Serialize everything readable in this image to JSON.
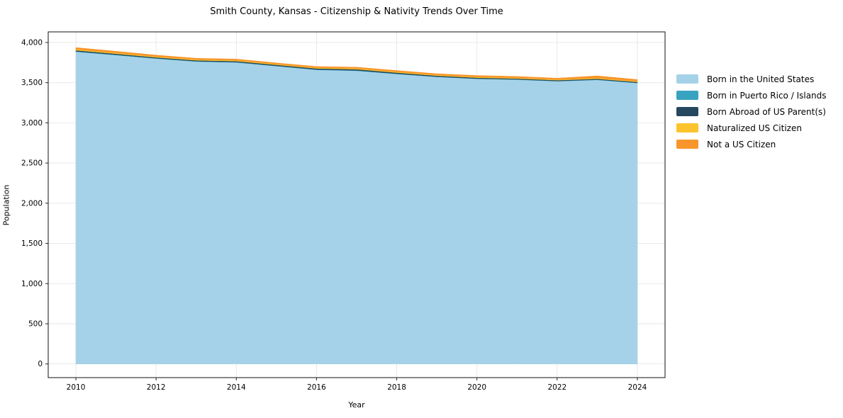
{
  "chart_data": {
    "type": "area",
    "stacked": true,
    "title": "Smith County, Kansas - Citizenship & Nativity Trends Over Time",
    "xlabel": "Year",
    "ylabel": "Population",
    "x": [
      2010,
      2011,
      2012,
      2013,
      2014,
      2015,
      2016,
      2017,
      2018,
      2019,
      2020,
      2021,
      2022,
      2023,
      2024
    ],
    "series": [
      {
        "name": "Born in the United States",
        "color": "#a5d2e8",
        "values": [
          3885,
          3843,
          3800,
          3763,
          3752,
          3706,
          3660,
          3648,
          3608,
          3572,
          3548,
          3538,
          3518,
          3535,
          3495
        ]
      },
      {
        "name": "Born in Puerto Rico / Islands",
        "color": "#38a3c0",
        "values": [
          5,
          5,
          4,
          4,
          4,
          4,
          4,
          5,
          4,
          3,
          3,
          3,
          3,
          3,
          4
        ]
      },
      {
        "name": "Born Abroad of US Parent(s)",
        "color": "#25485e",
        "values": [
          13,
          12,
          11,
          11,
          12,
          12,
          13,
          14,
          13,
          12,
          11,
          10,
          10,
          10,
          10
        ]
      },
      {
        "name": "Naturalized US Citizen",
        "color": "#fcc32d",
        "values": [
          12,
          11,
          10,
          10,
          10,
          9,
          9,
          10,
          10,
          9,
          9,
          9,
          8,
          9,
          10
        ]
      },
      {
        "name": "Not a US Citizen",
        "color": "#f8962b",
        "values": [
          22,
          20,
          18,
          16,
          16,
          15,
          15,
          16,
          16,
          16,
          18,
          18,
          17,
          28,
          20
        ]
      }
    ],
    "x_ticks": {
      "values": [
        2010,
        2012,
        2014,
        2016,
        2018,
        2020,
        2022,
        2024
      ],
      "labels": [
        "2010",
        "2012",
        "2014",
        "2016",
        "2018",
        "2020",
        "2022",
        "2024"
      ]
    },
    "y_ticks": {
      "values": [
        0,
        500,
        1000,
        1500,
        2000,
        2500,
        3000,
        3500,
        4000
      ],
      "labels": [
        "0",
        "500",
        "1,000",
        "1,500",
        "2,000",
        "2,500",
        "3,000",
        "3,500",
        "4,000"
      ]
    },
    "xlim": [
      2009.31,
      2024.69
    ],
    "ylim": [
      -170,
      4132
    ],
    "grid": true,
    "grid_color": "#e6e6e6",
    "frame_color": "#262626",
    "legend_position": "right"
  }
}
